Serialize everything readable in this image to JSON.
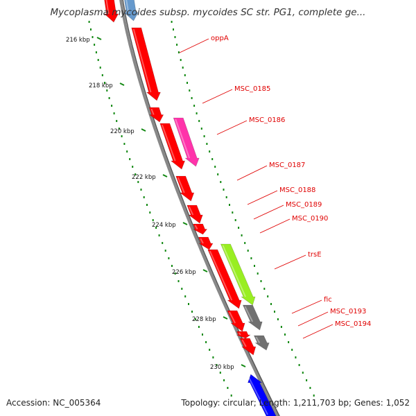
{
  "title": "Mycoplasma mycoides subsp. mycoides SC str. PG1, complete ge...",
  "footer": {
    "accession": "Accession: NC_005364",
    "summary": "Topology: circular; Length: 1,211,703 bp; Genes: 1,052"
  },
  "ruler_ticks": [
    "216 kbp",
    "218 kbp",
    "220 kbp",
    "222 kbp",
    "224 kbp",
    "226 kbp",
    "228 kbp",
    "230 kbp"
  ],
  "gene_labels": [
    "oppA",
    "MSC_0185",
    "MSC_0186",
    "MSC_0187",
    "MSC_0188",
    "MSC_0189",
    "MSC_0190",
    "trsE",
    "fic",
    "MSC_0193",
    "MSC_0194"
  ],
  "colors": {
    "cds": "#ff0000",
    "highlight_magenta": "#ff33aa",
    "highlight_green": "#99ee22",
    "grey": "#707070",
    "blue": "#0000ff",
    "light_blue": "#6699cc",
    "tick_green": "#118811",
    "backbone": "#888888",
    "label_red": "#e00000"
  }
}
